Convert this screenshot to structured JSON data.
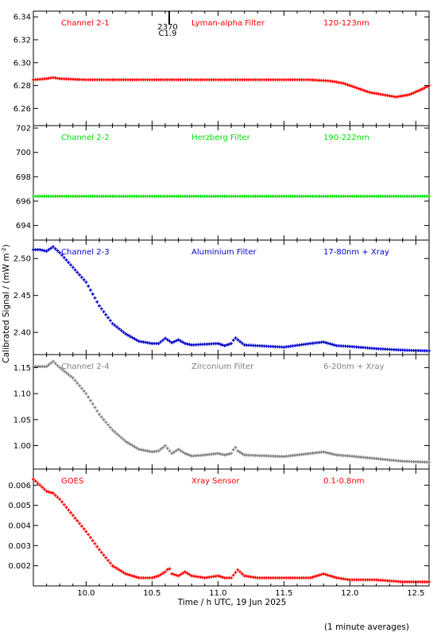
{
  "figure": {
    "xlabel": "Time / h UTC, 19 Jun 2025",
    "ylabel": "Calibrated Signal / (mW m",
    "ylabel_sup": "-2",
    "ylabel_close": ")",
    "footnote": "(1 minute averages)",
    "event_marker": {
      "x": 10.63,
      "label1": "2370",
      "label2": "C1.9"
    },
    "xlim": [
      9.6,
      12.6
    ],
    "xticks": [
      10.0,
      10.5,
      11.0,
      11.5,
      12.0,
      12.5
    ],
    "xtick_labels": [
      "10.0",
      "10.5",
      "11.0",
      "11.5",
      "12.0",
      "12.5"
    ]
  },
  "chart_data": [
    {
      "type": "scatter",
      "channel": "Channel 2-1",
      "filter": "Lyman-alpha Filter",
      "band": "120-123nm",
      "color": "#ff0000",
      "ylim": [
        6.245,
        6.345
      ],
      "yticks": [
        6.26,
        6.28,
        6.3,
        6.32,
        6.34
      ],
      "ytick_labels": [
        "6.26",
        "6.28",
        "6.30",
        "6.32",
        "6.34"
      ],
      "x": [
        9.6,
        9.7,
        9.75,
        9.8,
        10.0,
        10.5,
        11.0,
        11.5,
        11.7,
        11.85,
        11.95,
        12.05,
        12.15,
        12.25,
        12.35,
        12.45,
        12.55,
        12.6
      ],
      "y": [
        6.285,
        6.286,
        6.287,
        6.286,
        6.285,
        6.285,
        6.285,
        6.285,
        6.285,
        6.284,
        6.282,
        6.278,
        6.274,
        6.272,
        6.27,
        6.272,
        6.277,
        6.28
      ]
    },
    {
      "type": "scatter",
      "channel": "Channel 2-2",
      "filter": "Herzberg Filter",
      "band": "190-222nm",
      "color": "#00e000",
      "ylim": [
        692.8,
        702.2
      ],
      "yticks": [
        694,
        696,
        698,
        700,
        702
      ],
      "ytick_labels": [
        "694",
        "696",
        "698",
        "700",
        "702"
      ],
      "x": [
        9.6,
        10.0,
        10.5,
        11.0,
        11.5,
        12.0,
        12.6
      ],
      "y": [
        696.4,
        696.4,
        696.4,
        696.4,
        696.4,
        696.4,
        696.4
      ]
    },
    {
      "type": "scatter",
      "channel": "Channel 2-3",
      "filter": "Aluminium Filter",
      "band": "17-80nm + Xray",
      "color": "#0000cc",
      "ylim": [
        2.37,
        2.525
      ],
      "yticks": [
        2.4,
        2.45,
        2.5
      ],
      "ytick_labels": [
        "2.40",
        "2.45",
        "2.50"
      ],
      "x": [
        9.6,
        9.65,
        9.7,
        9.75,
        9.8,
        9.9,
        10.0,
        10.1,
        10.2,
        10.3,
        10.4,
        10.5,
        10.55,
        10.6,
        10.65,
        10.7,
        10.75,
        10.8,
        10.9,
        11.0,
        11.05,
        11.1,
        11.13,
        11.15,
        11.2,
        11.3,
        11.5,
        11.7,
        11.8,
        11.9,
        12.0,
        12.2,
        12.4,
        12.6
      ],
      "y": [
        2.512,
        2.512,
        2.51,
        2.516,
        2.508,
        2.488,
        2.468,
        2.436,
        2.412,
        2.398,
        2.388,
        2.385,
        2.385,
        2.392,
        2.386,
        2.39,
        2.385,
        2.383,
        2.384,
        2.385,
        2.382,
        2.385,
        2.393,
        2.39,
        2.383,
        2.382,
        2.38,
        2.385,
        2.387,
        2.382,
        2.381,
        2.378,
        2.376,
        2.375
      ]
    },
    {
      "type": "scatter",
      "channel": "Channel 2-4",
      "filter": "Zirconium Filter",
      "band": "6-20nm + Xray",
      "color": "#808080",
      "ylim": [
        0.955,
        1.175
      ],
      "yticks": [
        1.0,
        1.05,
        1.1,
        1.15
      ],
      "ytick_labels": [
        "1.00",
        "1.05",
        "1.10",
        "1.15"
      ],
      "x": [
        9.6,
        9.65,
        9.7,
        9.75,
        9.8,
        9.9,
        10.0,
        10.1,
        10.2,
        10.3,
        10.4,
        10.5,
        10.55,
        10.6,
        10.65,
        10.7,
        10.75,
        10.8,
        10.9,
        11.0,
        11.05,
        11.1,
        11.13,
        11.15,
        11.2,
        11.3,
        11.5,
        11.7,
        11.8,
        11.9,
        12.0,
        12.2,
        12.4,
        12.6
      ],
      "y": [
        1.152,
        1.152,
        1.152,
        1.162,
        1.15,
        1.13,
        1.1,
        1.06,
        1.03,
        1.008,
        0.993,
        0.988,
        0.99,
        1.0,
        0.985,
        0.993,
        0.985,
        0.98,
        0.982,
        0.985,
        0.982,
        0.985,
        0.998,
        0.99,
        0.982,
        0.981,
        0.979,
        0.985,
        0.988,
        0.982,
        0.98,
        0.975,
        0.97,
        0.968
      ]
    },
    {
      "type": "scatter",
      "channel": "GOES",
      "filter": "Xray Sensor",
      "band": "0.1-0.8nm",
      "color": "#ff0000",
      "ylim": [
        0.001,
        0.0068
      ],
      "yticks": [
        0.002,
        0.003,
        0.004,
        0.005,
        0.006
      ],
      "ytick_labels": [
        "0.002",
        "0.003",
        "0.004",
        "0.005",
        "0.006"
      ],
      "x": [
        9.6,
        9.65,
        9.7,
        9.75,
        9.8,
        9.9,
        10.0,
        10.1,
        10.2,
        10.3,
        10.4,
        10.5,
        10.55,
        10.6,
        10.63,
        10.65,
        10.7,
        10.75,
        10.8,
        10.9,
        11.0,
        11.05,
        11.1,
        11.15,
        11.2,
        11.3,
        11.5,
        11.7,
        11.8,
        11.9,
        12.0,
        12.2,
        12.4,
        12.6
      ],
      "y": [
        0.0063,
        0.006,
        0.0057,
        0.0056,
        0.0053,
        0.0045,
        0.0037,
        0.0028,
        0.002,
        0.0016,
        0.0014,
        0.0014,
        0.0015,
        0.0017,
        0.0019,
        0.0016,
        0.0015,
        0.0017,
        0.0015,
        0.0014,
        0.0015,
        0.0014,
        0.0014,
        0.0018,
        0.0015,
        0.0014,
        0.0014,
        0.0014,
        0.0016,
        0.0014,
        0.0013,
        0.0013,
        0.0012,
        0.0012
      ]
    }
  ]
}
